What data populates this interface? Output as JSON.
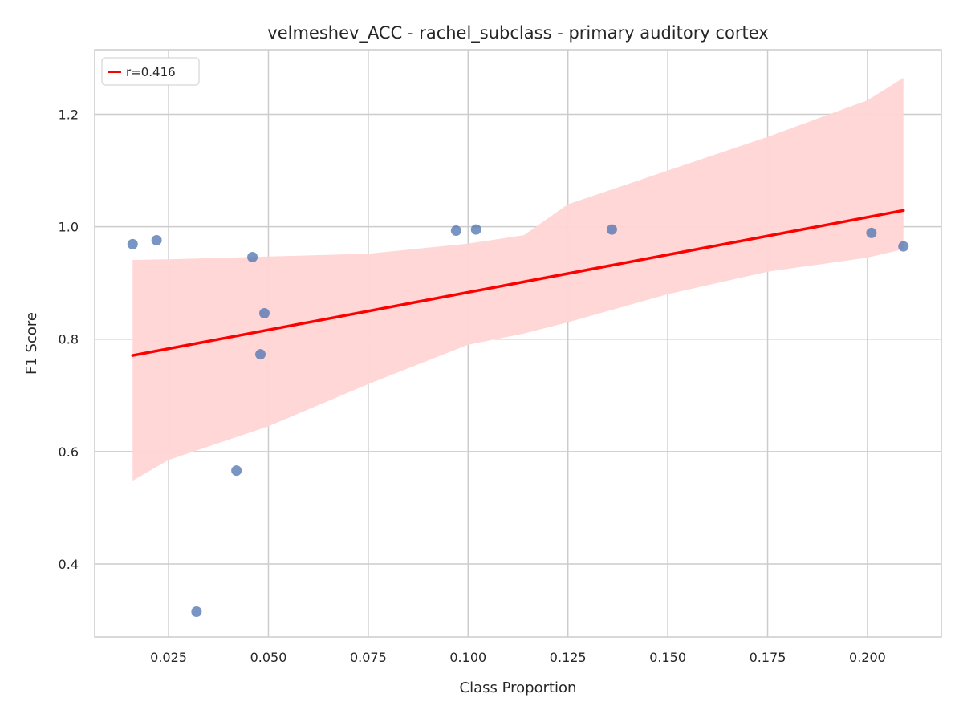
{
  "chart_data": {
    "type": "scatter",
    "title": "velmeshev_ACC - rachel_subclass - primary auditory cortex",
    "xlabel": "Class Proportion",
    "ylabel": "F1 Score",
    "xlim": [
      0.0065,
      0.2185
    ],
    "ylim": [
      0.27,
      1.315
    ],
    "x_ticks": [
      0.025,
      0.05,
      0.075,
      0.1,
      0.125,
      0.15,
      0.175,
      0.2
    ],
    "x_tick_labels": [
      "0.025",
      "0.050",
      "0.075",
      "0.100",
      "0.125",
      "0.150",
      "0.175",
      "0.200"
    ],
    "y_ticks": [
      0.4,
      0.6,
      0.8,
      1.0,
      1.2
    ],
    "y_tick_labels": [
      "0.4",
      "0.6",
      "0.8",
      "1.0",
      "1.2"
    ],
    "grid": true,
    "legend_position": "top-left",
    "points": {
      "color": "#4c72b0",
      "x": [
        0.016,
        0.022,
        0.032,
        0.042,
        0.046,
        0.048,
        0.049,
        0.097,
        0.102,
        0.136,
        0.201,
        0.209
      ],
      "y": [
        0.969,
        0.976,
        0.315,
        0.566,
        0.946,
        0.773,
        0.846,
        0.993,
        0.995,
        0.995,
        0.989,
        0.965
      ]
    },
    "regression": {
      "label": "r=0.416",
      "color": "#ff0000",
      "x": [
        0.016,
        0.209
      ],
      "y": [
        0.771,
        1.029
      ]
    },
    "confidence_band": {
      "color": "#ffd5d5",
      "x": [
        0.016,
        0.025,
        0.05,
        0.075,
        0.1,
        0.114,
        0.125,
        0.15,
        0.175,
        0.2,
        0.209
      ],
      "lower": [
        0.548,
        0.585,
        0.645,
        0.72,
        0.79,
        0.81,
        0.83,
        0.88,
        0.92,
        0.945,
        0.96
      ],
      "upper": [
        0.941,
        0.942,
        0.947,
        0.952,
        0.97,
        0.985,
        1.04,
        1.1,
        1.16,
        1.225,
        1.265
      ]
    }
  }
}
